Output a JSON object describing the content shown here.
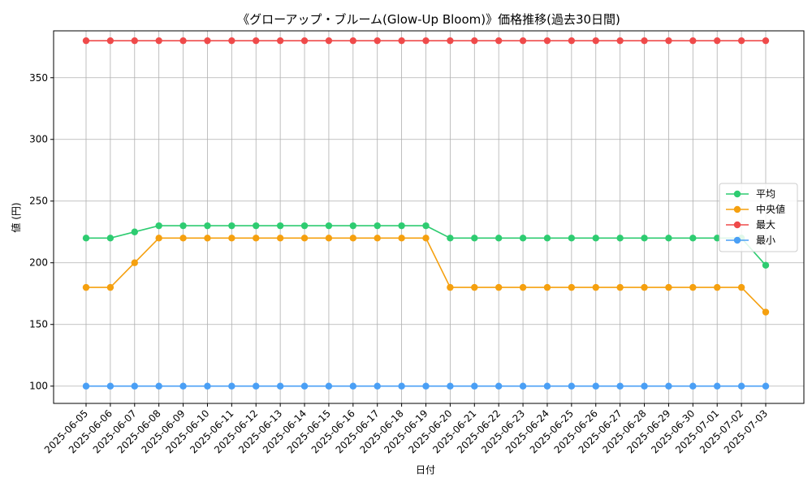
{
  "chart_data": {
    "type": "line",
    "title": "《グローアップ・ブルーム(Glow-Up Bloom)》価格推移(過去30日間)",
    "xlabel": "日付",
    "ylabel": "値 (円)",
    "ylim": [
      86,
      388
    ],
    "yticks": [
      100,
      150,
      200,
      250,
      300,
      350
    ],
    "grid": true,
    "legend_position": "center-right",
    "categories": [
      "2025-06-05",
      "2025-06-06",
      "2025-06-07",
      "2025-06-08",
      "2025-06-09",
      "2025-06-10",
      "2025-06-11",
      "2025-06-12",
      "2025-06-13",
      "2025-06-14",
      "2025-06-15",
      "2025-06-16",
      "2025-06-17",
      "2025-06-18",
      "2025-06-19",
      "2025-06-20",
      "2025-06-21",
      "2025-06-22",
      "2025-06-23",
      "2025-06-24",
      "2025-06-25",
      "2025-06-26",
      "2025-06-27",
      "2025-06-28",
      "2025-06-29",
      "2025-06-30",
      "2025-07-01",
      "2025-07-02",
      "2025-07-03"
    ],
    "series": [
      {
        "name": "平均",
        "color": "#2ecc71",
        "values": [
          220,
          220,
          225,
          230,
          230,
          230,
          230,
          230,
          230,
          230,
          230,
          230,
          230,
          230,
          230,
          220,
          220,
          220,
          220,
          220,
          220,
          220,
          220,
          220,
          220,
          220,
          220,
          220,
          198
        ]
      },
      {
        "name": "中央値",
        "color": "#f5a00f",
        "values": [
          180,
          180,
          200,
          220,
          220,
          220,
          220,
          220,
          220,
          220,
          220,
          220,
          220,
          220,
          220,
          180,
          180,
          180,
          180,
          180,
          180,
          180,
          180,
          180,
          180,
          180,
          180,
          180,
          160
        ]
      },
      {
        "name": "最大",
        "color": "#ef4a4a",
        "values": [
          380,
          380,
          380,
          380,
          380,
          380,
          380,
          380,
          380,
          380,
          380,
          380,
          380,
          380,
          380,
          380,
          380,
          380,
          380,
          380,
          380,
          380,
          380,
          380,
          380,
          380,
          380,
          380,
          380
        ]
      },
      {
        "name": "最小",
        "color": "#4a9ff5",
        "values": [
          100,
          100,
          100,
          100,
          100,
          100,
          100,
          100,
          100,
          100,
          100,
          100,
          100,
          100,
          100,
          100,
          100,
          100,
          100,
          100,
          100,
          100,
          100,
          100,
          100,
          100,
          100,
          100,
          100
        ]
      }
    ]
  }
}
